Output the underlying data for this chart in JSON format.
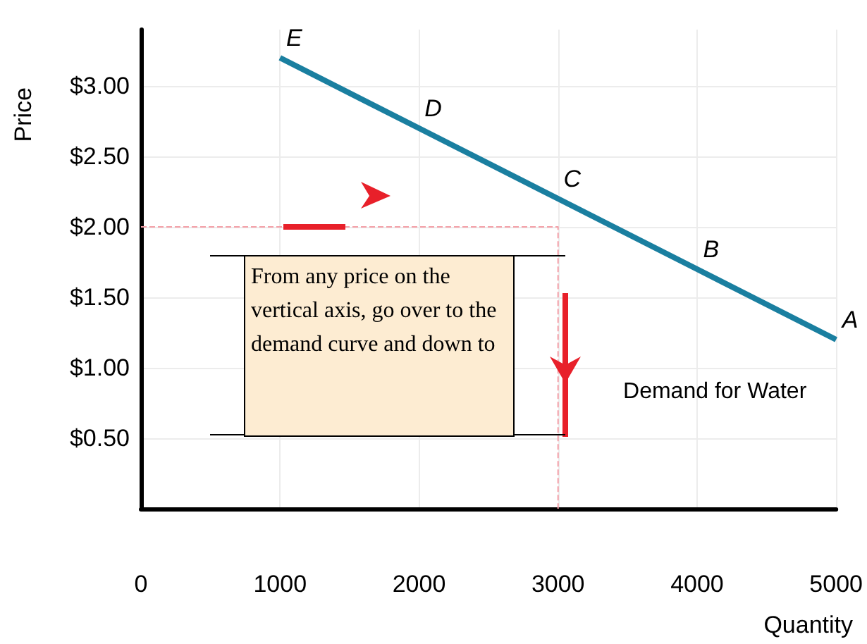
{
  "chart_data": {
    "type": "line",
    "xlabel": "Quantity",
    "ylabel": "Price",
    "xlim": [
      0,
      5000
    ],
    "xticks": [
      0,
      1000,
      2000,
      3000,
      4000,
      5000
    ],
    "ylim": [
      0,
      3.4
    ],
    "yticks": [
      {
        "value": 0.5,
        "label": "$0.50"
      },
      {
        "value": 1,
        "label": "$1.00"
      },
      {
        "value": 1.5,
        "label": "$1.50"
      },
      {
        "value": 2,
        "label": "$2.00"
      },
      {
        "value": 2.5,
        "label": "$2.50"
      },
      {
        "value": 3,
        "label": "$3.00"
      }
    ],
    "grid": true,
    "marker": "none",
    "series": [
      {
        "name": "Demand for Water",
        "color": "#1a7fa0",
        "x": [
          1000,
          2000,
          3000,
          4000,
          5000
        ],
        "values": [
          3.2,
          2.7,
          2.2,
          1.7,
          1.2
        ],
        "line_style": "solid"
      },
      {
        "color": "#f4a0a8",
        "x": [
          0,
          3000,
          3000
        ],
        "values": [
          2.0,
          2.0,
          0
        ],
        "line_style": "dashed"
      }
    ],
    "annotations": [
      {
        "text": "E",
        "x": 1000,
        "y": 3.2
      },
      {
        "text": "D",
        "x": 2000,
        "y": 2.7
      },
      {
        "text": "C",
        "x": 3000,
        "y": 2.2
      },
      {
        "text": "B",
        "x": 4000,
        "y": 1.7
      },
      {
        "text": "A",
        "x": 5000,
        "y": 1.2
      },
      "From any price on the vertical axis, go over to the demand curve and down to"
    ]
  }
}
